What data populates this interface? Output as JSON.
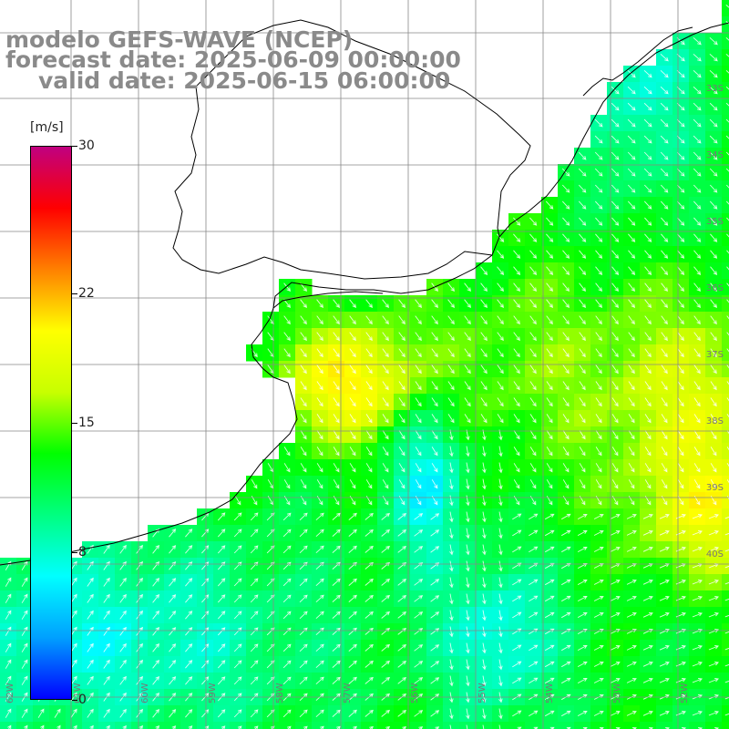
{
  "map": {
    "title_model": "modelo GEFS-WAVE (NCEP)",
    "title_forecast": "forecast date: 2025-06-09 00:00:00",
    "title_valid": "valid date: 2025-06-15 06:00:00",
    "variable": "wind speed",
    "units_label": "[m/s]",
    "colorbar": {
      "min": 0,
      "max": 30,
      "tick_labels": [
        "30",
        "22",
        "15",
        "8",
        "0"
      ],
      "tick_values": [
        30,
        22,
        15,
        8,
        0
      ],
      "colors": [
        "#0000ff",
        "#00a0ff",
        "#00ffff",
        "#00ff80",
        "#00ff00",
        "#c8ff00",
        "#ffff00",
        "#ff8000",
        "#ff0000",
        "#c00080"
      ]
    },
    "lat_labels": [
      "33S",
      "34S",
      "35S",
      "36S",
      "37S",
      "38S",
      "39S",
      "40S"
    ],
    "lon_labels": [
      "62W",
      "61W",
      "60W",
      "59W",
      "58W",
      "57W",
      "56W",
      "55W",
      "54W",
      "53W",
      "52W"
    ],
    "region": "Rio de la Plata / Uruguay coast",
    "arrow_color": "#ffffff",
    "coast_color": "#000000",
    "grid_color": "#888888"
  }
}
